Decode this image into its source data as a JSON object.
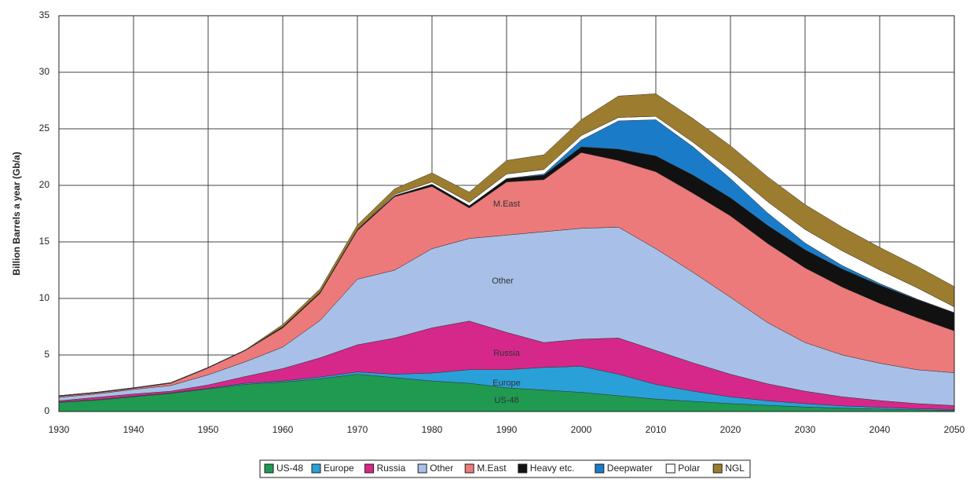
{
  "chart_data": {
    "type": "stacked_area",
    "y_label": "Billion Barrels a year (Gb/a)",
    "x": [
      1930,
      1935,
      1940,
      1945,
      1950,
      1955,
      1960,
      1965,
      1970,
      1975,
      1980,
      1985,
      1990,
      1995,
      2000,
      2005,
      2010,
      2015,
      2020,
      2025,
      2030,
      2035,
      2040,
      2045,
      2050
    ],
    "series": [
      {
        "name": "US-48",
        "color": "#1f9a50",
        "values": [
          0.8,
          1.0,
          1.3,
          1.6,
          2.0,
          2.4,
          2.6,
          2.9,
          3.3,
          3.0,
          2.7,
          2.5,
          2.1,
          1.9,
          1.7,
          1.4,
          1.1,
          0.9,
          0.7,
          0.55,
          0.4,
          0.3,
          0.22,
          0.15,
          0.1
        ]
      },
      {
        "name": "Europe",
        "color": "#2aa0d8",
        "values": [
          0.05,
          0.05,
          0.05,
          0.05,
          0.05,
          0.1,
          0.1,
          0.15,
          0.2,
          0.3,
          0.7,
          1.2,
          1.6,
          2.0,
          2.3,
          1.9,
          1.3,
          0.9,
          0.6,
          0.4,
          0.3,
          0.2,
          0.15,
          0.1,
          0.08
        ]
      },
      {
        "name": "Russia",
        "color": "#d6288a",
        "values": [
          0.1,
          0.2,
          0.2,
          0.15,
          0.3,
          0.6,
          1.1,
          1.7,
          2.4,
          3.2,
          4.0,
          4.3,
          3.3,
          2.2,
          2.4,
          3.2,
          3.0,
          2.5,
          2.0,
          1.5,
          1.1,
          0.8,
          0.6,
          0.45,
          0.35
        ]
      },
      {
        "name": "Other",
        "color": "#a8c0e8",
        "values": [
          0.3,
          0.3,
          0.4,
          0.5,
          0.9,
          1.3,
          1.9,
          3.3,
          5.8,
          6.0,
          7.0,
          7.3,
          8.6,
          9.8,
          9.8,
          9.8,
          9.0,
          8.0,
          6.8,
          5.4,
          4.3,
          3.7,
          3.3,
          3.0,
          2.9
        ]
      },
      {
        "name": "M.East",
        "color": "#ec7a7a",
        "values": [
          0.1,
          0.1,
          0.1,
          0.2,
          0.6,
          1.0,
          1.7,
          2.4,
          4.3,
          6.5,
          5.5,
          2.7,
          4.7,
          4.6,
          6.7,
          5.9,
          6.8,
          7.0,
          7.2,
          7.0,
          6.6,
          6.0,
          5.3,
          4.6,
          3.7
        ]
      },
      {
        "name": "Heavy etc.",
        "color": "#111111",
        "values": [
          0.05,
          0.05,
          0.05,
          0.05,
          0.05,
          0.05,
          0.1,
          0.1,
          0.1,
          0.1,
          0.2,
          0.2,
          0.3,
          0.4,
          0.5,
          1.0,
          1.4,
          1.6,
          1.6,
          1.6,
          1.6,
          1.6,
          1.6,
          1.6,
          1.6
        ]
      },
      {
        "name": "Deepwater",
        "color": "#1a7cc8",
        "values": [
          0,
          0,
          0,
          0,
          0,
          0,
          0,
          0,
          0,
          0,
          0,
          0,
          0,
          0.1,
          0.6,
          2.5,
          3.2,
          2.5,
          1.7,
          1.1,
          0.6,
          0.3,
          0.15,
          0.05,
          0.02
        ]
      },
      {
        "name": "Polar",
        "color": "#ffffff",
        "values": [
          0,
          0,
          0,
          0,
          0,
          0,
          0,
          0,
          0,
          0.1,
          0.2,
          0.3,
          0.4,
          0.4,
          0.4,
          0.3,
          0.3,
          0.4,
          0.7,
          1.0,
          1.2,
          1.3,
          1.2,
          1.0,
          0.5
        ]
      },
      {
        "name": "NGL",
        "color": "#9c7c2e",
        "values": [
          0,
          0,
          0,
          0,
          0,
          0,
          0.2,
          0.3,
          0.4,
          0.5,
          0.8,
          0.9,
          1.2,
          1.3,
          1.4,
          1.9,
          2.0,
          2.1,
          2.2,
          2.2,
          2.2,
          2.1,
          2.0,
          1.9,
          1.8
        ]
      }
    ],
    "area_labels": [
      "M.East",
      "Other",
      "Russia",
      "Europe",
      "US-48"
    ],
    "xlim": [
      1930,
      2050
    ],
    "xticks": [
      1930,
      1940,
      1950,
      1960,
      1970,
      1980,
      1990,
      2000,
      2010,
      2020,
      2030,
      2040,
      2050
    ],
    "ylim": [
      0,
      35
    ],
    "yticks": [
      0,
      5,
      10,
      15,
      20,
      25,
      30,
      35
    ],
    "grid": true
  }
}
